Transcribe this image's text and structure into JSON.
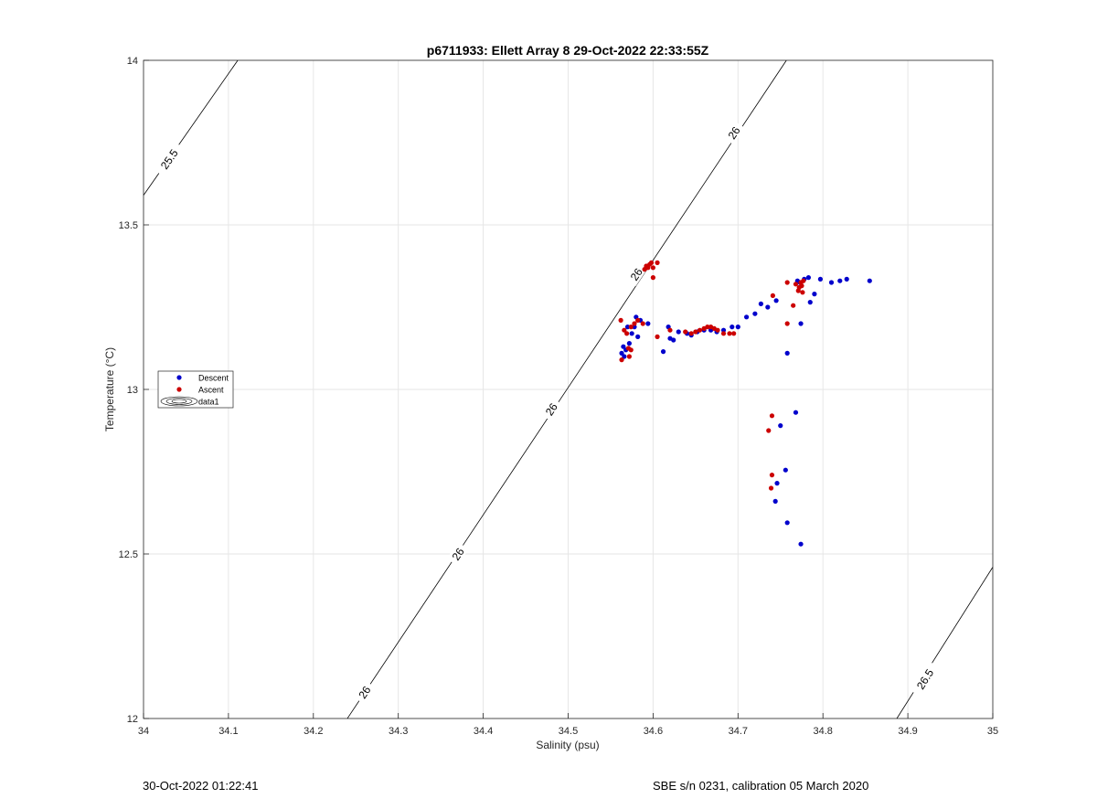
{
  "chart_data": {
    "type": "scatter",
    "title": "p6711933: Ellett Array 8 29-Oct-2022 22:33:55Z",
    "xlabel": "Salinity (psu)",
    "ylabel": "Temperature (°C)",
    "xlim": [
      34,
      35
    ],
    "ylim": [
      12,
      14
    ],
    "x_ticks": [
      34,
      34.1,
      34.2,
      34.3,
      34.4,
      34.5,
      34.6,
      34.7,
      34.8,
      34.9,
      35
    ],
    "x_tick_labels": [
      "34",
      "34.1",
      "34.2",
      "34.3",
      "34.4",
      "34.5",
      "34.6",
      "34.7",
      "34.8",
      "34.9",
      "35"
    ],
    "y_ticks": [
      12,
      12.5,
      13,
      13.5,
      14
    ],
    "y_tick_labels": [
      "12",
      "12.5",
      "13",
      "13.5",
      "14"
    ],
    "grid": true,
    "legend_position": "left",
    "legend": [
      "Descent",
      "Ascent",
      "data1"
    ],
    "contours": [
      {
        "label": "25.5",
        "points": [
          [
            34.0,
            13.59
          ],
          [
            34.111,
            14.0
          ]
        ],
        "label_positions": [
          [
            34.03,
            13.7
          ]
        ]
      },
      {
        "label": "26",
        "points": [
          [
            34.24,
            12.0
          ],
          [
            34.757,
            14.0
          ]
        ],
        "label_positions": [
          [
            34.26,
            12.08
          ],
          [
            34.37,
            12.5
          ],
          [
            34.48,
            12.94
          ],
          [
            34.58,
            13.35
          ],
          [
            34.695,
            13.78
          ]
        ]
      },
      {
        "label": "26.5",
        "points": [
          [
            34.887,
            12.0
          ],
          [
            35.0,
            12.46
          ]
        ],
        "label_positions": [
          [
            34.92,
            12.12
          ]
        ]
      }
    ],
    "series": [
      {
        "name": "Descent",
        "color": "#0000cc",
        "points": [
          [
            34.855,
            13.33
          ],
          [
            34.828,
            13.335
          ],
          [
            34.82,
            13.33
          ],
          [
            34.81,
            13.325
          ],
          [
            34.797,
            13.335
          ],
          [
            34.783,
            13.34
          ],
          [
            34.778,
            13.335
          ],
          [
            34.773,
            13.325
          ],
          [
            34.77,
            13.33
          ],
          [
            34.79,
            13.29
          ],
          [
            34.785,
            13.265
          ],
          [
            34.774,
            13.2
          ],
          [
            34.758,
            13.11
          ],
          [
            34.745,
            13.27
          ],
          [
            34.735,
            13.25
          ],
          [
            34.727,
            13.26
          ],
          [
            34.72,
            13.23
          ],
          [
            34.71,
            13.22
          ],
          [
            34.7,
            13.19
          ],
          [
            34.693,
            13.19
          ],
          [
            34.683,
            13.18
          ],
          [
            34.675,
            13.175
          ],
          [
            34.668,
            13.18
          ],
          [
            34.66,
            13.18
          ],
          [
            34.652,
            13.175
          ],
          [
            34.645,
            13.165
          ],
          [
            34.64,
            13.17
          ],
          [
            34.63,
            13.175
          ],
          [
            34.624,
            13.15
          ],
          [
            34.62,
            13.155
          ],
          [
            34.618,
            13.19
          ],
          [
            34.612,
            13.115
          ],
          [
            34.594,
            13.2
          ],
          [
            34.585,
            13.21
          ],
          [
            34.58,
            13.22
          ],
          [
            34.578,
            13.19
          ],
          [
            34.582,
            13.16
          ],
          [
            34.575,
            13.17
          ],
          [
            34.572,
            13.14
          ],
          [
            34.57,
            13.19
          ],
          [
            34.568,
            13.12
          ],
          [
            34.566,
            13.1
          ],
          [
            34.563,
            13.11
          ],
          [
            34.565,
            13.13
          ],
          [
            34.768,
            12.93
          ],
          [
            34.75,
            12.89
          ],
          [
            34.746,
            12.715
          ],
          [
            34.756,
            12.755
          ],
          [
            34.744,
            12.66
          ],
          [
            34.758,
            12.595
          ],
          [
            34.774,
            12.53
          ]
        ]
      },
      {
        "name": "Ascent",
        "color": "#cc0000",
        "points": [
          [
            34.605,
            13.385
          ],
          [
            34.6,
            13.37
          ],
          [
            34.598,
            13.385
          ],
          [
            34.596,
            13.38
          ],
          [
            34.594,
            13.37
          ],
          [
            34.592,
            13.375
          ],
          [
            34.59,
            13.365
          ],
          [
            34.6,
            13.34
          ],
          [
            34.774,
            13.325
          ],
          [
            34.777,
            13.33
          ],
          [
            34.772,
            13.31
          ],
          [
            34.768,
            13.32
          ],
          [
            34.776,
            13.295
          ],
          [
            34.771,
            13.3
          ],
          [
            34.765,
            13.255
          ],
          [
            34.758,
            13.325
          ],
          [
            34.775,
            13.315
          ],
          [
            34.741,
            13.285
          ],
          [
            34.758,
            13.2
          ],
          [
            34.69,
            13.17
          ],
          [
            34.695,
            13.17
          ],
          [
            34.683,
            13.17
          ],
          [
            34.676,
            13.18
          ],
          [
            34.672,
            13.185
          ],
          [
            34.668,
            13.19
          ],
          [
            34.664,
            13.19
          ],
          [
            34.66,
            13.185
          ],
          [
            34.655,
            13.18
          ],
          [
            34.65,
            13.175
          ],
          [
            34.645,
            13.17
          ],
          [
            34.638,
            13.175
          ],
          [
            34.62,
            13.18
          ],
          [
            34.605,
            13.16
          ],
          [
            34.588,
            13.2
          ],
          [
            34.582,
            13.21
          ],
          [
            34.578,
            13.2
          ],
          [
            34.574,
            13.19
          ],
          [
            34.571,
            13.125
          ],
          [
            34.569,
            13.17
          ],
          [
            34.566,
            13.18
          ],
          [
            34.562,
            13.21
          ],
          [
            34.563,
            13.09
          ],
          [
            34.572,
            13.1
          ],
          [
            34.574,
            13.12
          ],
          [
            34.74,
            12.92
          ],
          [
            34.736,
            12.875
          ],
          [
            34.74,
            12.74
          ],
          [
            34.739,
            12.7
          ]
        ]
      }
    ]
  },
  "footer": {
    "left": "30-Oct-2022 01:22:41",
    "right": "SBE s/n 0231, calibration 05 March 2020"
  }
}
